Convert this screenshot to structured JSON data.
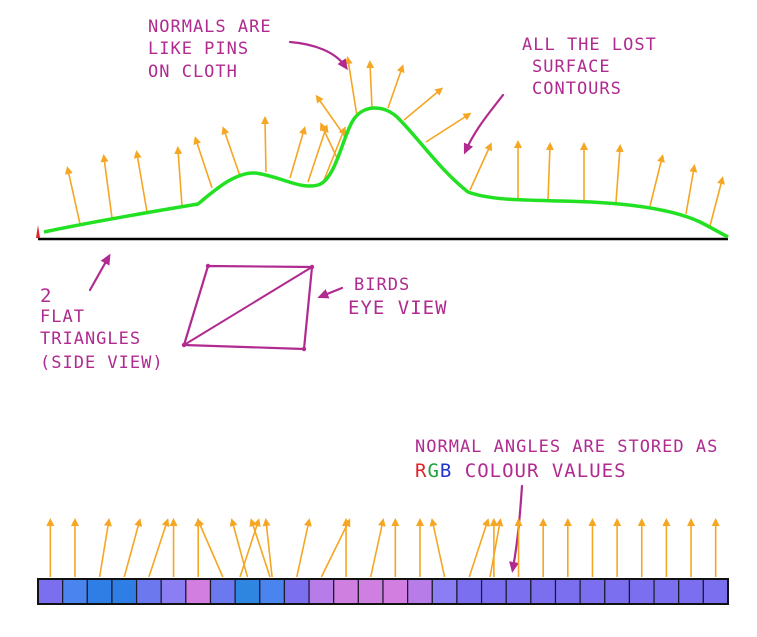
{
  "colors": {
    "annotation": "#b02a8f",
    "normal_arrow": "#f5a623",
    "surface_curve": "#22e022",
    "base_line": "#000000",
    "r_letter": "#e0202a",
    "g_letter": "#22a040",
    "b_letter": "#2233cc"
  },
  "labels": {
    "normals_line1": "NORMALS ARE",
    "normals_line2": "LIKE PINS",
    "normals_line3": "ON CLOTH",
    "contours_line1": "ALL THE LOST",
    "contours_line2": "SURFACE",
    "contours_line3": "CONTOURS",
    "flat_line1": "2",
    "flat_line2": "FLAT",
    "flat_line3": "TRIANGLES",
    "flat_line4": "(SIDE VIEW)",
    "birds_line1": "BIRDS",
    "birds_line2": "EYE VIEW",
    "stored_line1": "NORMAL ANGLES ARE STORED AS",
    "stored_r": "R",
    "stored_g": "G",
    "stored_b": "B",
    "stored_rest": " COLOUR VALUES"
  },
  "texture_cells": [
    "#7b6ff0",
    "#4a84ee",
    "#2f7ee6",
    "#2f7ee6",
    "#6b78ee",
    "#8a7ef2",
    "#d27ee0",
    "#6b78ee",
    "#2f86e0",
    "#4a84ee",
    "#7b6ff0",
    "#b77ce8",
    "#cf7fe0",
    "#cf7fe0",
    "#d27ee0",
    "#b77ce8",
    "#8a7ef2",
    "#7b6ff0",
    "#7b6ff0",
    "#7b6ff0",
    "#7b6ff0",
    "#7b6ff0",
    "#7b6ff0",
    "#7b6ff0",
    "#7b6ff0",
    "#7b6ff0",
    "#7b6ff0",
    "#7b6ff0"
  ],
  "bottom_normal_tilts": [
    0,
    0,
    0.3,
    0.5,
    0.6,
    0,
    0,
    -0.8,
    -0.5,
    -0.2,
    0.4,
    0.9,
    0,
    0.4,
    0,
    0,
    -0.4,
    0.6,
    0,
    0,
    0,
    0,
    0,
    0,
    0,
    0,
    0,
    0
  ]
}
